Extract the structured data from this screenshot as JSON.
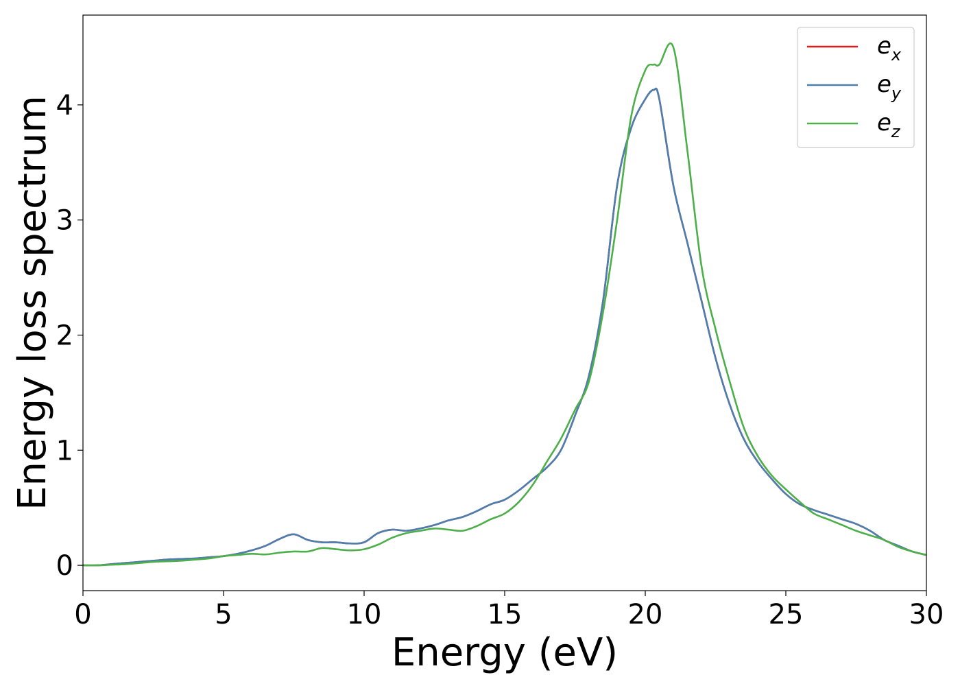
{
  "chart_data": {
    "type": "line",
    "xlabel": "Energy (eV)",
    "ylabel": "Energy loss spectrum",
    "xlim": [
      0,
      30
    ],
    "ylim": [
      -0.22,
      4.78
    ],
    "xticks": [
      0,
      5,
      10,
      15,
      20,
      25,
      30
    ],
    "yticks": [
      0,
      1,
      2,
      3,
      4
    ],
    "xtick_labels": [
      "0",
      "5",
      "10",
      "15",
      "20",
      "25",
      "30"
    ],
    "ytick_labels": [
      "0",
      "1",
      "2",
      "3",
      "4"
    ],
    "grid": false,
    "legend_position": "top-right",
    "x": [
      0,
      0.5,
      1,
      1.5,
      2,
      2.5,
      3,
      3.5,
      4,
      4.5,
      5,
      5.5,
      6,
      6.5,
      7,
      7.5,
      8,
      8.5,
      9,
      9.5,
      10,
      10.5,
      11,
      11.5,
      12,
      12.5,
      13,
      13.5,
      14,
      14.5,
      15,
      15.5,
      16,
      16.5,
      17,
      17.5,
      18,
      18.5,
      19,
      19.5,
      20,
      20.3,
      20.5,
      21,
      21.5,
      22,
      22.5,
      23,
      23.5,
      24,
      24.5,
      25,
      25.5,
      26,
      26.5,
      27,
      27.5,
      28,
      28.5,
      29,
      29.5,
      30
    ],
    "series": [
      {
        "name_base": "e",
        "name_sub": "x",
        "color": "#e41a1c",
        "values": [
          0.0,
          0.0,
          0.01,
          0.02,
          0.03,
          0.04,
          0.05,
          0.055,
          0.06,
          0.07,
          0.08,
          0.1,
          0.13,
          0.17,
          0.23,
          0.27,
          0.22,
          0.2,
          0.2,
          0.19,
          0.2,
          0.28,
          0.31,
          0.3,
          0.32,
          0.35,
          0.39,
          0.42,
          0.47,
          0.53,
          0.57,
          0.65,
          0.75,
          0.85,
          1.0,
          1.3,
          1.65,
          2.3,
          3.3,
          3.8,
          4.05,
          4.13,
          4.05,
          3.3,
          2.8,
          2.3,
          1.8,
          1.4,
          1.1,
          0.9,
          0.75,
          0.62,
          0.53,
          0.48,
          0.44,
          0.4,
          0.36,
          0.3,
          0.22,
          0.17,
          0.12,
          0.09
        ]
      },
      {
        "name_base": "e",
        "name_sub": "y",
        "color": "#4a7fb0",
        "values": [
          0.0,
          0.0,
          0.01,
          0.02,
          0.03,
          0.04,
          0.05,
          0.055,
          0.06,
          0.07,
          0.08,
          0.1,
          0.13,
          0.17,
          0.23,
          0.27,
          0.22,
          0.2,
          0.2,
          0.19,
          0.2,
          0.28,
          0.31,
          0.3,
          0.32,
          0.35,
          0.39,
          0.42,
          0.47,
          0.53,
          0.57,
          0.65,
          0.75,
          0.85,
          1.0,
          1.3,
          1.65,
          2.3,
          3.3,
          3.8,
          4.05,
          4.13,
          4.05,
          3.3,
          2.8,
          2.3,
          1.8,
          1.4,
          1.1,
          0.9,
          0.75,
          0.62,
          0.53,
          0.48,
          0.44,
          0.4,
          0.36,
          0.3,
          0.22,
          0.17,
          0.12,
          0.09
        ]
      },
      {
        "name_base": "e",
        "name_sub": "z",
        "color": "#4daf4a",
        "values": [
          0.0,
          0.0,
          0.005,
          0.01,
          0.02,
          0.03,
          0.035,
          0.04,
          0.05,
          0.06,
          0.08,
          0.09,
          0.1,
          0.095,
          0.11,
          0.12,
          0.12,
          0.15,
          0.14,
          0.13,
          0.14,
          0.18,
          0.24,
          0.28,
          0.3,
          0.32,
          0.31,
          0.3,
          0.34,
          0.4,
          0.45,
          0.55,
          0.7,
          0.9,
          1.1,
          1.35,
          1.6,
          2.2,
          3.0,
          3.9,
          4.3,
          4.35,
          4.35,
          4.5,
          3.6,
          2.6,
          2.05,
          1.6,
          1.2,
          0.95,
          0.78,
          0.66,
          0.55,
          0.45,
          0.4,
          0.35,
          0.3,
          0.26,
          0.22,
          0.16,
          0.12,
          0.09
        ]
      }
    ]
  }
}
